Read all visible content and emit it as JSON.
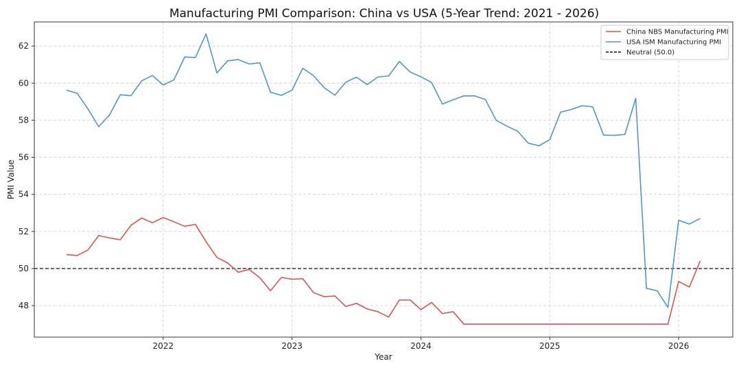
{
  "chart_data": {
    "type": "line",
    "title": "Manufacturing PMI Comparison: China vs USA (5-Year Trend: 2021 - 2026)",
    "xlabel": "Year",
    "ylabel": "PMI Value",
    "xlim": [
      2021.0,
      2026.42
    ],
    "ylim": [
      46.3,
      63.3
    ],
    "grid": true,
    "legend_position": "top-right",
    "x_ticks": [
      {
        "value": 2022,
        "label": "2022"
      },
      {
        "value": 2023,
        "label": "2023"
      },
      {
        "value": 2024,
        "label": "2024"
      },
      {
        "value": 2025,
        "label": "2025"
      },
      {
        "value": 2026,
        "label": "2026"
      }
    ],
    "y_ticks": [
      {
        "value": 48,
        "label": "48"
      },
      {
        "value": 50,
        "label": "50"
      },
      {
        "value": 52,
        "label": "52"
      },
      {
        "value": 54,
        "label": "54"
      },
      {
        "value": 56,
        "label": "56"
      },
      {
        "value": 58,
        "label": "58"
      },
      {
        "value": 60,
        "label": "60"
      },
      {
        "value": 62,
        "label": "62"
      }
    ],
    "x": [
      2021.25,
      2021.333,
      2021.417,
      2021.5,
      2021.583,
      2021.667,
      2021.75,
      2021.833,
      2021.917,
      2022.0,
      2022.083,
      2022.167,
      2022.25,
      2022.333,
      2022.417,
      2022.5,
      2022.583,
      2022.667,
      2022.75,
      2022.833,
      2022.917,
      2023.0,
      2023.083,
      2023.167,
      2023.25,
      2023.333,
      2023.417,
      2023.5,
      2023.583,
      2023.667,
      2023.75,
      2023.833,
      2023.917,
      2024.0,
      2024.083,
      2024.167,
      2024.25,
      2024.333,
      2024.417,
      2024.5,
      2024.583,
      2024.667,
      2024.75,
      2024.833,
      2024.917,
      2025.0,
      2025.083,
      2025.167,
      2025.25,
      2025.333,
      2025.417,
      2025.5,
      2025.583,
      2025.667,
      2025.75,
      2025.833,
      2025.917,
      2026.0,
      2026.083,
      2026.167
    ],
    "series": [
      {
        "name": "China NBS Manufacturing PMI",
        "color": "#d9534f",
        "values": [
          50.75,
          50.7,
          51.0,
          51.78,
          51.65,
          51.55,
          52.33,
          52.72,
          52.47,
          52.75,
          52.52,
          52.28,
          52.38,
          51.45,
          50.6,
          50.3,
          49.8,
          49.95,
          49.5,
          48.8,
          49.52,
          49.42,
          49.45,
          48.7,
          48.48,
          48.52,
          47.95,
          48.12,
          47.82,
          47.67,
          47.38,
          48.3,
          48.3,
          47.78,
          48.17,
          47.57,
          47.67,
          47.0,
          47.0,
          47.0,
          47.0,
          47.0,
          47.0,
          47.0,
          47.0,
          47.0,
          47.0,
          47.0,
          47.0,
          47.0,
          47.0,
          47.0,
          47.0,
          47.0,
          47.0,
          47.0,
          47.0,
          49.3,
          49.0,
          50.4
        ]
      },
      {
        "name": "USA ISM Manufacturing PMI",
        "color": "#4f97c2",
        "values": [
          59.62,
          59.45,
          58.6,
          57.65,
          58.28,
          59.37,
          59.32,
          60.12,
          60.41,
          59.9,
          60.17,
          61.41,
          61.38,
          62.65,
          60.55,
          61.2,
          61.27,
          61.03,
          61.1,
          59.51,
          59.34,
          59.62,
          60.8,
          60.4,
          59.75,
          59.35,
          60.05,
          60.32,
          59.92,
          60.33,
          60.39,
          61.17,
          60.6,
          60.34,
          60.03,
          58.87,
          59.1,
          59.31,
          59.31,
          59.12,
          58.0,
          57.68,
          57.41,
          56.76,
          56.62,
          56.95,
          58.43,
          58.58,
          58.78,
          58.72,
          57.2,
          57.18,
          57.23,
          59.18,
          48.93,
          48.8,
          47.9,
          52.6,
          52.4,
          52.7
        ]
      }
    ],
    "reference_lines": [
      {
        "name": "Neutral (50.0)",
        "value": 50.0,
        "color": "#111111",
        "style": "dashed"
      }
    ]
  }
}
